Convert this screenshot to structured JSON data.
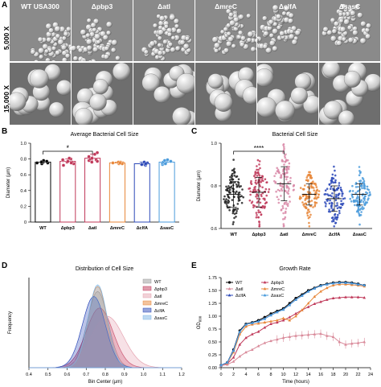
{
  "panel_letters": {
    "a": "A",
    "b": "B",
    "c": "C",
    "d": "D",
    "e": "E"
  },
  "panel_a": {
    "strains": [
      "WT USA300",
      "Δpbp3",
      "Δatl",
      "ΔmreC",
      "ΔclfA",
      "ΔsasC"
    ],
    "rows": [
      "5,000 X",
      "15,000 X"
    ]
  },
  "chart_data": [
    {
      "id": "B",
      "type": "bar",
      "title": "Average Bacterial Cell Size",
      "ylabel": "Diameter (µm)",
      "categories": [
        "WT",
        "Δpbp3",
        "Δatl",
        "ΔmreC",
        "ΔclfA",
        "ΔsasC"
      ],
      "values": [
        0.76,
        0.77,
        0.81,
        0.75,
        0.74,
        0.76
      ],
      "errors": [
        0.02,
        0.03,
        0.05,
        0.01,
        0.02,
        0.03
      ],
      "points": [
        [
          0.74,
          0.75,
          0.76,
          0.77,
          0.78,
          0.76,
          0.75
        ],
        [
          0.72,
          0.74,
          0.76,
          0.78,
          0.8,
          0.77,
          0.76,
          0.79,
          0.81,
          0.75
        ],
        [
          0.76,
          0.78,
          0.8,
          0.83,
          0.86,
          0.88,
          0.79,
          0.81,
          0.77
        ],
        [
          0.74,
          0.75,
          0.76,
          0.75,
          0.76,
          0.74,
          0.75
        ],
        [
          0.72,
          0.73,
          0.74,
          0.75,
          0.76,
          0.74,
          0.73
        ],
        [
          0.73,
          0.75,
          0.77,
          0.79,
          0.76,
          0.74,
          0.78
        ]
      ],
      "colors": [
        "#000000",
        "#c0395a",
        "#c0395a",
        "#e8873a",
        "#2c49b8",
        "#4a9bdc"
      ],
      "ylim": [
        0,
        1.0
      ],
      "yticks": [
        "0",
        "0.2",
        "0.4",
        "0.6",
        "0.8",
        "1.0"
      ],
      "significance": "*"
    },
    {
      "id": "C",
      "type": "scatter",
      "title": "Bacterial Cell Size",
      "ylabel": "Diameter (µm)",
      "categories": [
        "WT",
        "Δpbp3",
        "Δatl",
        "ΔmreC",
        "ΔclfA",
        "ΔsasC"
      ],
      "means": [
        0.76,
        0.77,
        0.81,
        0.76,
        0.74,
        0.76
      ],
      "sd": [
        0.06,
        0.07,
        0.08,
        0.05,
        0.06,
        0.05
      ],
      "colors": [
        "#222222",
        "#c0395a",
        "#d98aa8",
        "#e8873a",
        "#2c49b8",
        "#4a9bdc"
      ],
      "ylim": [
        0.6,
        1.0
      ],
      "yticks": [
        "0.6",
        "0.8",
        "1.0"
      ],
      "significance": "****"
    },
    {
      "id": "D",
      "type": "area",
      "title": "Distribution of Cell Size",
      "xlabel": "Bin Center (µm)",
      "ylabel": "Frequency",
      "xlim": [
        0.4,
        1.2
      ],
      "xticks": [
        "0.4",
        "0.5",
        "0.6",
        "0.7",
        "0.8",
        "0.9",
        "1.0",
        "1.1",
        "1.2"
      ],
      "series": [
        {
          "name": "WT",
          "mean": 0.76,
          "sd": 0.055,
          "peak": 0.92,
          "color": "#9a9a9a"
        },
        {
          "name": "Δpbp3",
          "mean": 0.77,
          "sd": 0.07,
          "peak": 0.72,
          "color": "#c0395a"
        },
        {
          "name": "Δatl",
          "mean": 0.81,
          "sd": 0.085,
          "peak": 0.62,
          "color": "#e5a3b0"
        },
        {
          "name": "ΔmreC",
          "mean": 0.76,
          "sd": 0.05,
          "peak": 0.98,
          "color": "#e8873a"
        },
        {
          "name": "ΔclfA",
          "mean": 0.74,
          "sd": 0.06,
          "peak": 0.86,
          "color": "#2c49b8"
        },
        {
          "name": "ΔsasC",
          "mean": 0.76,
          "sd": 0.05,
          "peak": 1.0,
          "color": "#7fb6e6"
        }
      ]
    },
    {
      "id": "E",
      "type": "line",
      "title": "Growth Rate",
      "xlabel": "Time (hours)",
      "ylabel": "OD",
      "ylabel_sub": "600",
      "xlim": [
        0,
        24
      ],
      "ylim": [
        0,
        1.75
      ],
      "xticks": [
        "0",
        "2",
        "4",
        "6",
        "8",
        "10",
        "12",
        "14",
        "16",
        "18",
        "20",
        "22",
        "24"
      ],
      "yticks": [
        "0.00",
        "0.25",
        "0.50",
        "0.75",
        "1.00",
        "1.25",
        "1.50",
        "1.75"
      ],
      "x": [
        0,
        1,
        2,
        3,
        4,
        5,
        6,
        7,
        8,
        9,
        10,
        11,
        12,
        13,
        14,
        15,
        16,
        17,
        18,
        19,
        20,
        21,
        22,
        23
      ],
      "series": [
        {
          "name": "WT",
          "color": "#000000",
          "values": [
            0.05,
            0.1,
            0.35,
            0.72,
            0.85,
            0.88,
            0.92,
            0.98,
            1.05,
            1.1,
            1.15,
            1.25,
            1.35,
            1.42,
            1.5,
            1.55,
            1.6,
            1.63,
            1.65,
            1.66,
            1.66,
            1.65,
            1.63,
            1.6
          ]
        },
        {
          "name": "Δpbp3",
          "color": "#c0395a",
          "values": [
            0.05,
            0.08,
            0.2,
            0.45,
            0.58,
            0.65,
            0.7,
            0.78,
            0.85,
            0.88,
            0.92,
            0.98,
            1.05,
            1.12,
            1.18,
            1.24,
            1.28,
            1.32,
            1.35,
            1.36,
            1.37,
            1.37,
            1.37,
            1.36
          ]
        },
        {
          "name": "Δatl",
          "color": "#d98a9a",
          "values": [
            0.04,
            0.06,
            0.12,
            0.22,
            0.3,
            0.35,
            0.42,
            0.48,
            0.52,
            0.55,
            0.58,
            0.6,
            0.62,
            0.63,
            0.64,
            0.65,
            0.66,
            0.62,
            0.6,
            0.5,
            0.45,
            0.47,
            0.48,
            0.5
          ]
        },
        {
          "name": "ΔmreC",
          "color": "#e8873a",
          "values": [
            0.05,
            0.09,
            0.3,
            0.65,
            0.8,
            0.84,
            0.86,
            0.88,
            0.9,
            0.92,
            0.96,
            0.92,
            1.0,
            1.12,
            1.25,
            1.38,
            1.48,
            1.55,
            1.6,
            1.62,
            1.62,
            1.61,
            1.6,
            1.58
          ]
        },
        {
          "name": "ΔclfA",
          "color": "#2c49b8",
          "values": [
            0.05,
            0.1,
            0.34,
            0.7,
            0.84,
            0.87,
            0.9,
            0.95,
            1.02,
            1.08,
            1.13,
            1.22,
            1.32,
            1.4,
            1.48,
            1.54,
            1.59,
            1.62,
            1.64,
            1.65,
            1.65,
            1.64,
            1.62,
            1.6
          ]
        },
        {
          "name": "ΔsasC",
          "color": "#4a9bdc",
          "values": [
            0.05,
            0.1,
            0.33,
            0.7,
            0.84,
            0.87,
            0.9,
            0.95,
            1.02,
            1.08,
            1.13,
            1.22,
            1.32,
            1.4,
            1.48,
            1.54,
            1.59,
            1.62,
            1.64,
            1.65,
            1.65,
            1.64,
            1.62,
            1.6
          ]
        }
      ]
    }
  ]
}
